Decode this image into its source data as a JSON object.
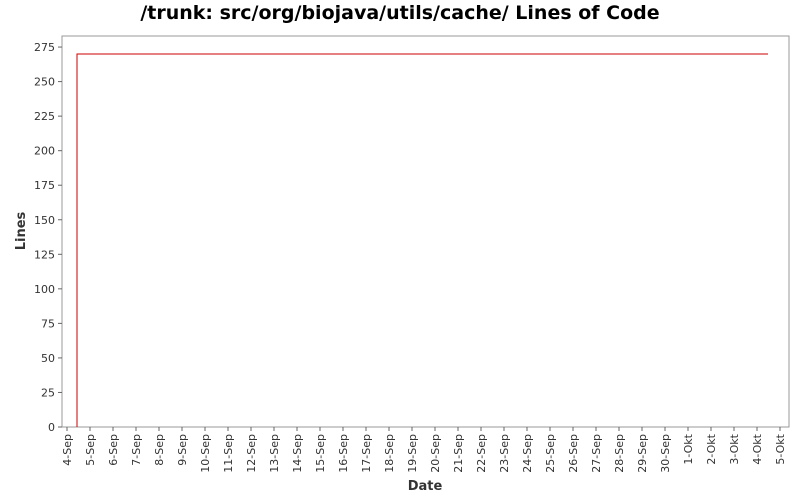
{
  "chart_data": {
    "type": "line",
    "title": "/trunk: src/org/biojava/utils/cache/ Lines of Code",
    "xlabel": "Date",
    "ylabel": "Lines",
    "x_tick_labels": [
      "4-Sep",
      "5-Sep",
      "6-Sep",
      "7-Sep",
      "8-Sep",
      "9-Sep",
      "10-Sep",
      "11-Sep",
      "12-Sep",
      "13-Sep",
      "14-Sep",
      "15-Sep",
      "16-Sep",
      "17-Sep",
      "18-Sep",
      "19-Sep",
      "20-Sep",
      "21-Sep",
      "22-Sep",
      "23-Sep",
      "24-Sep",
      "25-Sep",
      "26-Sep",
      "27-Sep",
      "28-Sep",
      "29-Sep",
      "30-Sep",
      "1-Okt",
      "2-Okt",
      "3-Okt",
      "4-Okt",
      "5-Okt"
    ],
    "y_ticks": [
      0,
      25,
      50,
      75,
      100,
      125,
      150,
      175,
      200,
      225,
      250,
      275
    ],
    "ylim": [
      0,
      283
    ],
    "grid": false,
    "series": [
      {
        "color": "#cc0000",
        "points": [
          {
            "x": "4-Sep",
            "y": 0
          },
          {
            "x": "4-Sep",
            "y": 270
          },
          {
            "x": "5-Okt",
            "y": 270
          }
        ]
      }
    ]
  }
}
